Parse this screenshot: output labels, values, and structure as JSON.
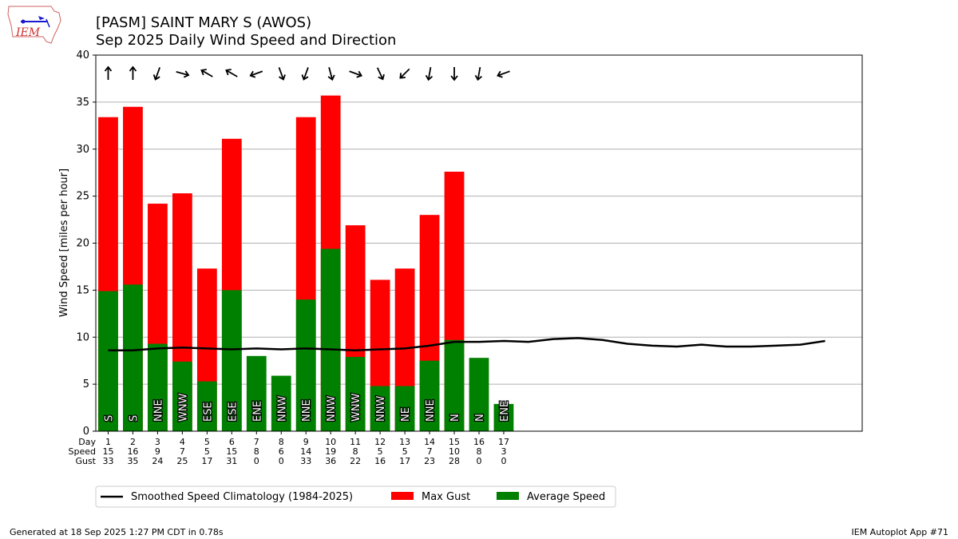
{
  "header": {
    "logo_text": "IEM",
    "title_line1": "[PASM] SAINT MARY S (AWOS)",
    "title_line2": "Sep 2025 Daily Wind Speed and Direction"
  },
  "footer": {
    "generated": "Generated at 18 Sep 2025 1:27 PM CDT in 0.78s",
    "app": "IEM Autoplot App #71"
  },
  "colors": {
    "gust": "#ff0000",
    "avg": "#008000",
    "clim": "#000000",
    "grid": "#b0b0b0"
  },
  "chart_data": {
    "type": "bar",
    "ylabel": "Wind Speed [miles per hour]",
    "ylim": [
      0,
      40
    ],
    "yticks": [
      0,
      5,
      10,
      15,
      20,
      25,
      30,
      35,
      40
    ],
    "xlim": [
      0.5,
      31.5
    ],
    "grid": true,
    "legend_position": "bottom",
    "row_labels": [
      "Day",
      "Speed",
      "Gust"
    ],
    "days": [
      1,
      2,
      3,
      4,
      5,
      6,
      7,
      8,
      9,
      10,
      11,
      12,
      13,
      14,
      15,
      16,
      17
    ],
    "avg_speed": [
      14.9,
      15.6,
      9.3,
      7.4,
      5.3,
      15.0,
      8.0,
      5.9,
      14.0,
      19.4,
      7.9,
      4.8,
      4.8,
      7.5,
      9.7,
      7.8,
      2.9
    ],
    "max_gust": [
      33.4,
      34.5,
      24.2,
      25.3,
      17.3,
      31.1,
      0,
      0,
      33.4,
      35.7,
      21.9,
      16.1,
      17.3,
      23.0,
      27.6,
      0,
      0
    ],
    "speed_labels": [
      "15",
      "16",
      "9",
      "7",
      "5",
      "15",
      "8",
      "6",
      "14",
      "19",
      "8",
      "5",
      "5",
      "7",
      "10",
      "8",
      "3"
    ],
    "gust_labels": [
      "33",
      "35",
      "24",
      "25",
      "17",
      "31",
      "0",
      "0",
      "33",
      "36",
      "22",
      "16",
      "17",
      "23",
      "28",
      "0",
      "0"
    ],
    "directions": [
      "S",
      "S",
      "NNE",
      "WNW",
      "ESE",
      "ESE",
      "ENE",
      "NNW",
      "NNE",
      "NNW",
      "WNW",
      "NNW",
      "NE",
      "NNE",
      "N",
      "N",
      "ENE"
    ],
    "arrow_angles": [
      0,
      0,
      200,
      105,
      300,
      300,
      250,
      160,
      200,
      165,
      110,
      155,
      225,
      190,
      180,
      190,
      250
    ],
    "climatology": {
      "name": "Smoothed Speed Climatology (1984-2025)",
      "x": [
        1,
        2,
        3,
        4,
        5,
        6,
        7,
        8,
        9,
        10,
        11,
        12,
        13,
        14,
        15,
        16,
        17,
        18,
        19,
        20,
        21,
        22,
        23,
        24,
        25,
        26,
        27,
        28,
        29,
        30
      ],
      "y": [
        8.6,
        8.6,
        8.8,
        8.9,
        8.8,
        8.7,
        8.8,
        8.7,
        8.8,
        8.7,
        8.6,
        8.7,
        8.8,
        9.1,
        9.5,
        9.5,
        9.6,
        9.5,
        9.8,
        9.9,
        9.7,
        9.3,
        9.1,
        9.0,
        9.2,
        9.0,
        9.0,
        9.1,
        9.2,
        9.6
      ]
    },
    "legend": [
      "Smoothed Speed Climatology (1984-2025)",
      "Max Gust",
      "Average Speed"
    ]
  }
}
